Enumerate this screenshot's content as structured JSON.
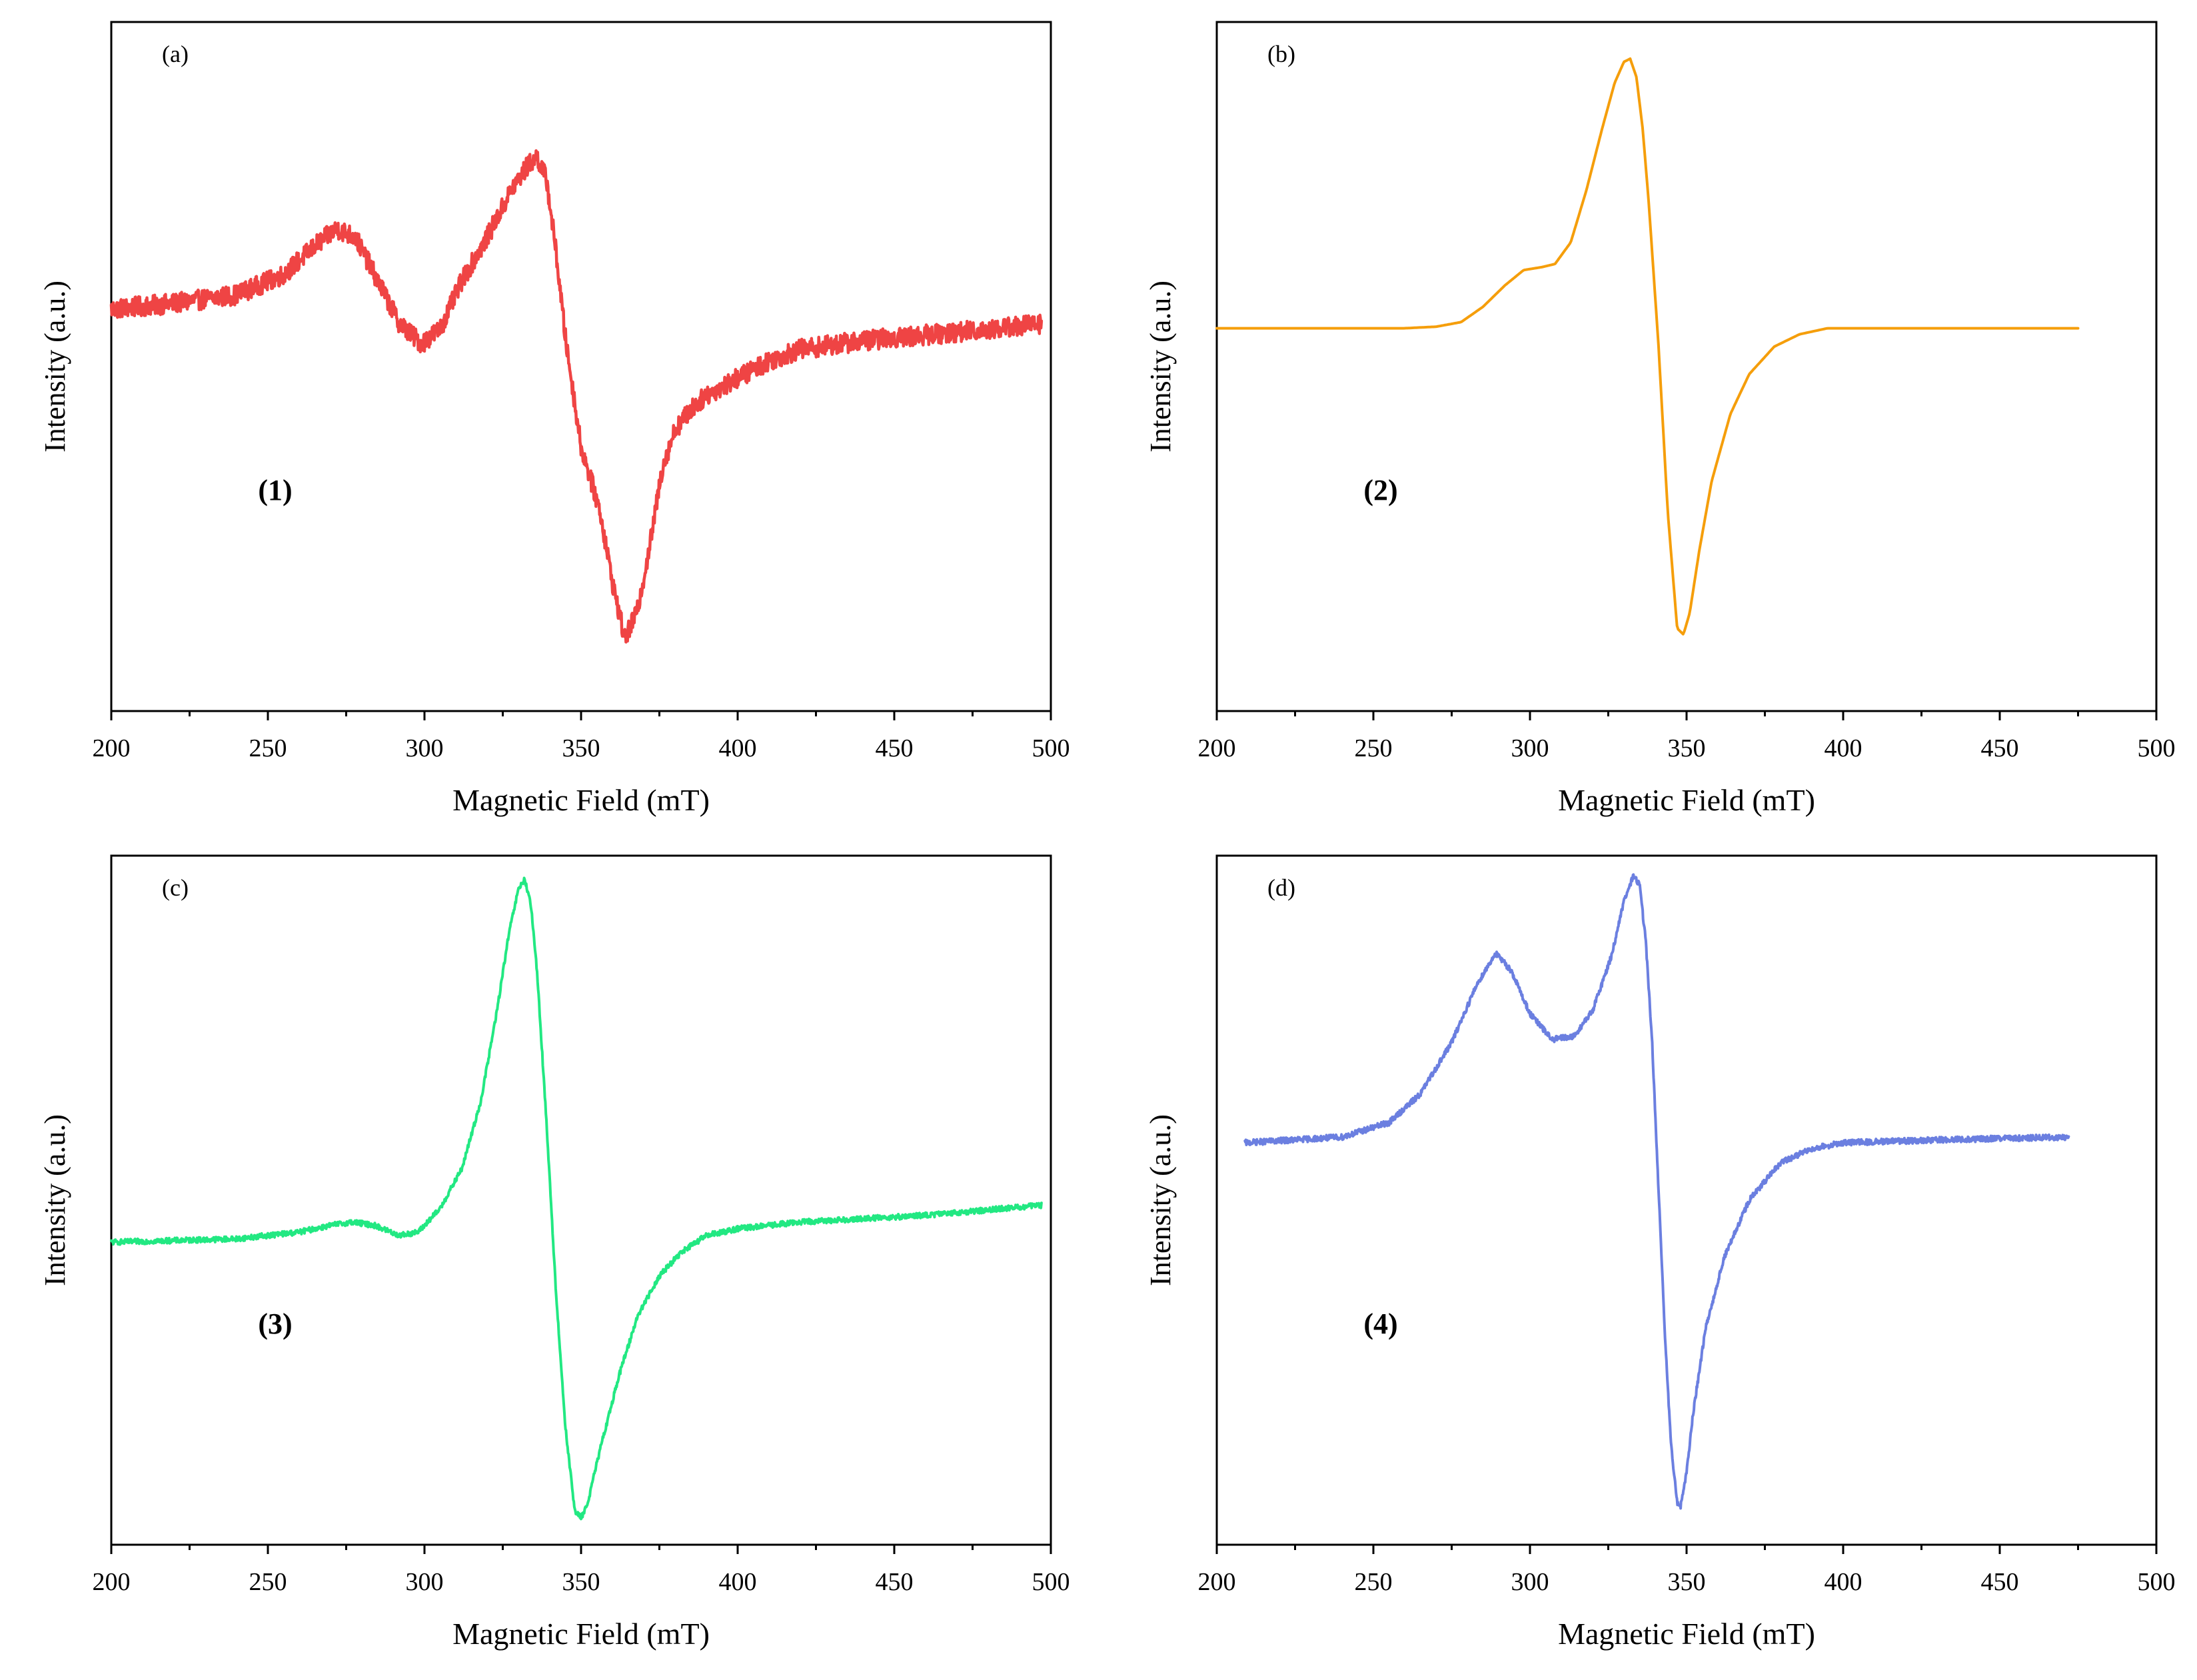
{
  "chart_data": [
    {
      "type": "line",
      "panel_label": "(a)",
      "series_label": "(1)",
      "xlabel": "Magnetic Field (mT)",
      "ylabel": "Intensity (a.u.)",
      "xlim": [
        200,
        500
      ],
      "ylim": [
        -1.4,
        1.0
      ],
      "xticks": [
        "200",
        "250",
        "300",
        "350",
        "400",
        "450",
        "500"
      ],
      "grid": false,
      "noise": 0.035,
      "series": [
        {
          "name": "(1)",
          "color": "#ef4444",
          "x": [
            200,
            220,
            240,
            255,
            265,
            272,
            278,
            285,
            292,
            299,
            305,
            312,
            320,
            328,
            333,
            336,
            339,
            342,
            345,
            350,
            356,
            360,
            364,
            368,
            372,
            376,
            380,
            385,
            390,
            400,
            410,
            420,
            440,
            460,
            480,
            497
          ],
          "y": [
            0.0,
            0.02,
            0.05,
            0.12,
            0.22,
            0.28,
            0.25,
            0.1,
            -0.05,
            -0.12,
            -0.07,
            0.1,
            0.25,
            0.42,
            0.5,
            0.53,
            0.45,
            0.2,
            -0.1,
            -0.48,
            -0.7,
            -0.95,
            -1.15,
            -1.05,
            -0.82,
            -0.55,
            -0.42,
            -0.35,
            -0.3,
            -0.24,
            -0.18,
            -0.14,
            -0.11,
            -0.09,
            -0.07,
            -0.05
          ]
        }
      ]
    },
    {
      "type": "line",
      "panel_label": "(b)",
      "series_label": "(2)",
      "xlabel": "Magnetic Field (mT)",
      "ylabel": "Intensity (a.u.)",
      "xlim": [
        200,
        500
      ],
      "ylim": [
        -1.25,
        1.0
      ],
      "xticks": [
        "200",
        "250",
        "300",
        "350",
        "400",
        "450",
        "500"
      ],
      "grid": false,
      "noise": 0,
      "series": [
        {
          "name": "(2)",
          "color": "#f59e0b",
          "x": [
            200,
            260,
            270,
            278,
            285,
            292,
            298,
            304,
            308,
            313,
            318,
            323,
            327,
            330,
            332,
            334,
            336,
            338,
            341,
            344,
            347,
            349,
            351,
            354,
            358,
            364,
            370,
            378,
            386,
            395,
            410,
            475
          ],
          "y": [
            0.0,
            0.0,
            0.005,
            0.02,
            0.07,
            0.14,
            0.19,
            0.2,
            0.21,
            0.28,
            0.45,
            0.65,
            0.8,
            0.87,
            0.88,
            0.82,
            0.65,
            0.4,
            -0.05,
            -0.6,
            -0.98,
            -1.0,
            -0.93,
            -0.73,
            -0.5,
            -0.28,
            -0.15,
            -0.06,
            -0.02,
            0.0,
            0.0,
            0.0
          ]
        }
      ]
    },
    {
      "type": "line",
      "panel_label": "(c)",
      "series_label": "(3)",
      "xlabel": "Magnetic Field (mT)",
      "ylabel": "Intensity (a.u.)",
      "xlim": [
        200,
        500
      ],
      "ylim": [
        -0.9,
        1.15
      ],
      "xticks": [
        "200",
        "250",
        "300",
        "350",
        "400",
        "450",
        "500"
      ],
      "grid": false,
      "noise": 0.008,
      "series": [
        {
          "name": "(3)",
          "color": "#22e882",
          "x": [
            200,
            240,
            260,
            270,
            277,
            284,
            292,
            298,
            305,
            312,
            318,
            323,
            327,
            330,
            332,
            334,
            336,
            339,
            342,
            345,
            348,
            350,
            352,
            356,
            362,
            368,
            375,
            382,
            390,
            400,
            420,
            460,
            497
          ],
          "y": [
            0.0,
            0.01,
            0.03,
            0.05,
            0.06,
            0.05,
            0.02,
            0.03,
            0.1,
            0.22,
            0.42,
            0.68,
            0.92,
            1.05,
            1.08,
            1.0,
            0.8,
            0.35,
            -0.15,
            -0.55,
            -0.8,
            -0.82,
            -0.78,
            -0.62,
            -0.4,
            -0.22,
            -0.1,
            -0.03,
            0.02,
            0.04,
            0.06,
            0.08,
            0.11
          ]
        }
      ]
    },
    {
      "type": "line",
      "panel_label": "(d)",
      "series_label": "(4)",
      "xlabel": "Magnetic Field (mT)",
      "ylabel": "Intensity (a.u.)",
      "xlim": [
        200,
        500
      ],
      "ylim": [
        -1.4,
        1.0
      ],
      "xticks": [
        "200",
        "250",
        "300",
        "350",
        "400",
        "450",
        "500"
      ],
      "grid": false,
      "noise": 0.01,
      "series": [
        {
          "name": "(4)",
          "color": "#6b7fe0",
          "x": [
            209,
            240,
            255,
            265,
            275,
            283,
            289,
            294,
            300,
            307,
            314,
            320,
            326,
            330,
            333,
            335,
            337,
            339,
            341,
            343,
            345,
            347,
            348,
            350,
            352,
            356,
            362,
            370,
            380,
            390,
            400,
            430,
            472
          ],
          "y": [
            0.0,
            0.02,
            0.07,
            0.17,
            0.35,
            0.55,
            0.66,
            0.6,
            0.45,
            0.36,
            0.37,
            0.46,
            0.65,
            0.84,
            0.93,
            0.9,
            0.7,
            0.35,
            -0.15,
            -0.65,
            -1.05,
            -1.25,
            -1.27,
            -1.15,
            -0.95,
            -0.65,
            -0.4,
            -0.2,
            -0.07,
            -0.02,
            0.0,
            0.01,
            0.02
          ]
        }
      ]
    }
  ]
}
